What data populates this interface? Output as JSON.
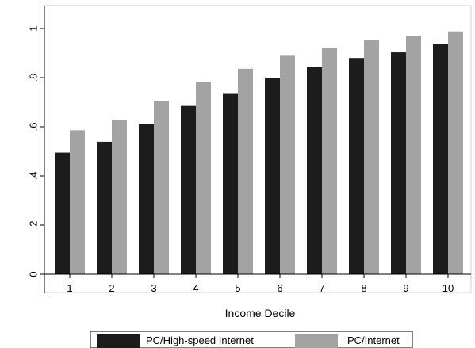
{
  "chart_data": {
    "type": "bar",
    "title": "",
    "xlabel": "Income Decile",
    "ylabel": "",
    "categories": [
      "1",
      "2",
      "3",
      "4",
      "5",
      "6",
      "7",
      "8",
      "9",
      "10"
    ],
    "ylim": [
      0,
      1
    ],
    "yticks": [
      0,
      0.2,
      0.4,
      0.6,
      0.8,
      1
    ],
    "ytick_labels": [
      "0",
      ".2",
      ".4",
      ".6",
      ".8",
      "1"
    ],
    "grid": false,
    "legend_position": "bottom",
    "series": [
      {
        "name": "PC/High-speed Internet",
        "color": "#1c1c1c",
        "values": [
          0.495,
          0.539,
          0.612,
          0.685,
          0.737,
          0.8,
          0.843,
          0.88,
          0.903,
          0.937
        ]
      },
      {
        "name": "PC/Internet",
        "color": "#a3a3a3",
        "values": [
          0.586,
          0.629,
          0.704,
          0.781,
          0.836,
          0.889,
          0.92,
          0.953,
          0.97,
          0.988
        ]
      }
    ]
  }
}
